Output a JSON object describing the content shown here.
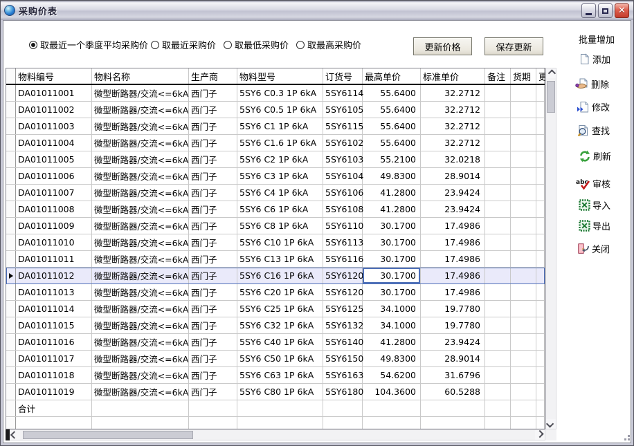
{
  "window": {
    "title": "采购价表"
  },
  "filter": {
    "options": [
      {
        "label": "取最近一个季度平均采购价",
        "selected": true
      },
      {
        "label": "取最近采购价",
        "selected": false
      },
      {
        "label": "取最低采购价",
        "selected": false
      },
      {
        "label": "取最高采购价",
        "selected": false
      }
    ]
  },
  "toolbar": {
    "update_price_label": "更新价格",
    "save_update_label": "保存更新"
  },
  "side_panel": {
    "items": [
      {
        "label": "批量增加",
        "icon": "none"
      },
      {
        "label": "添加",
        "icon": "new-doc-icon"
      },
      {
        "label": "删除",
        "icon": "delete-hand-icon"
      },
      {
        "label": "修改",
        "icon": "modify-doc-icon"
      },
      {
        "label": "查找",
        "icon": "search-doc-icon"
      },
      {
        "label": "刷新",
        "icon": "refresh-icon"
      },
      {
        "label": "审核",
        "icon": "abc-check-icon"
      },
      {
        "label": "导入",
        "icon": "excel-icon"
      },
      {
        "label": "导出",
        "icon": "excel-icon"
      },
      {
        "label": "关闭",
        "icon": "exit-door-icon"
      }
    ]
  },
  "table": {
    "columns": [
      "物料编号",
      "物料名称",
      "生产商",
      "物料型号",
      "订货号",
      "最高单价",
      "标准单价",
      "备注",
      "货期",
      "更"
    ],
    "rows": [
      [
        "DA01011001",
        "微型断路器/交流<=6kA",
        "西门子",
        "5SY6 C0.3 1P 6kA",
        "5SY6114",
        "55.6400",
        "32.2712",
        "",
        "",
        ""
      ],
      [
        "DA01011002",
        "微型断路器/交流<=6kA",
        "西门子",
        "5SY6 C0.5 1P 6kA",
        "5SY6105",
        "55.6400",
        "32.2712",
        "",
        "",
        ""
      ],
      [
        "DA01011003",
        "微型断路器/交流<=6kA",
        "西门子",
        "5SY6 C1 1P 6kA",
        "5SY6115",
        "55.6400",
        "32.2712",
        "",
        "",
        ""
      ],
      [
        "DA01011004",
        "微型断路器/交流<=6kA",
        "西门子",
        "5SY6 C1.6 1P 6kA",
        "5SY6102",
        "55.6400",
        "32.2712",
        "",
        "",
        ""
      ],
      [
        "DA01011005",
        "微型断路器/交流<=6kA",
        "西门子",
        "5SY6 C2 1P 6kA",
        "5SY6103",
        "55.2100",
        "32.0218",
        "",
        "",
        ""
      ],
      [
        "DA01011006",
        "微型断路器/交流<=6kA",
        "西门子",
        "5SY6 C3 1P 6kA",
        "5SY6104",
        "49.8300",
        "28.9014",
        "",
        "",
        ""
      ],
      [
        "DA01011007",
        "微型断路器/交流<=6kA",
        "西门子",
        "5SY6 C4 1P 6kA",
        "5SY6106",
        "41.2800",
        "23.9424",
        "",
        "",
        ""
      ],
      [
        "DA01011008",
        "微型断路器/交流<=6kA",
        "西门子",
        "5SY6 C6 1P 6kA",
        "5SY6108",
        "41.2800",
        "23.9424",
        "",
        "",
        ""
      ],
      [
        "DA01011009",
        "微型断路器/交流<=6kA",
        "西门子",
        "5SY6 C8 1P 6kA",
        "5SY6110",
        "30.1700",
        "17.4986",
        "",
        "",
        ""
      ],
      [
        "DA01011010",
        "微型断路器/交流<=6kA",
        "西门子",
        "5SY6 C10 1P 6kA",
        "5SY6113",
        "30.1700",
        "17.4986",
        "",
        "",
        ""
      ],
      [
        "DA01011011",
        "微型断路器/交流<=6kA",
        "西门子",
        "5SY6 C13 1P 6kA",
        "5SY6116",
        "30.1700",
        "17.4986",
        "",
        "",
        ""
      ],
      [
        "DA01011012",
        "微型断路器/交流<=6kA",
        "西门子",
        "5SY6 C16 1P 6kA",
        "5SY6120",
        "30.1700",
        "17.4986",
        "",
        "",
        ""
      ],
      [
        "DA01011013",
        "微型断路器/交流<=6kA",
        "西门子",
        "5SY6 C20 1P 6kA",
        "5SY6120",
        "30.1700",
        "17.4986",
        "",
        "",
        ""
      ],
      [
        "DA01011014",
        "微型断路器/交流<=6kA",
        "西门子",
        "5SY6 C25 1P 6kA",
        "5SY6125",
        "34.1000",
        "19.7780",
        "",
        "",
        ""
      ],
      [
        "DA01011015",
        "微型断路器/交流<=6kA",
        "西门子",
        "5SY6 C32 1P 6kA",
        "5SY6132",
        "34.1000",
        "19.7780",
        "",
        "",
        ""
      ],
      [
        "DA01011016",
        "微型断路器/交流<=6kA",
        "西门子",
        "5SY6 C40 1P 6kA",
        "5SY6140",
        "41.2800",
        "23.9424",
        "",
        "",
        ""
      ],
      [
        "DA01011017",
        "微型断路器/交流<=6kA",
        "西门子",
        "5SY6 C50 1P 6kA",
        "5SY6150",
        "49.8300",
        "28.9014",
        "",
        "",
        ""
      ],
      [
        "DA01011018",
        "微型断路器/交流<=6kA",
        "西门子",
        "5SY6 C63 1P 6kA",
        "5SY6163",
        "54.6200",
        "31.6796",
        "",
        "",
        ""
      ],
      [
        "DA01011019",
        "微型断路器/交流<=6kA",
        "西门子",
        "5SY6 C80 1P 6kA",
        "5SY6180",
        "104.3600",
        "60.5288",
        "",
        "",
        ""
      ]
    ],
    "total_label": "合计",
    "selected_row_id": "DA01011012",
    "selected_cell_column": "最高单价"
  },
  "colors": {
    "selection_border": "#4d6fb8",
    "selection_bg": "#eaeafa",
    "close_button_red": "#c43c2c",
    "excel_green": "#1e7a34",
    "refresh_green": "#3aa23e",
    "titlebar_silver": "#c2c3d2"
  }
}
